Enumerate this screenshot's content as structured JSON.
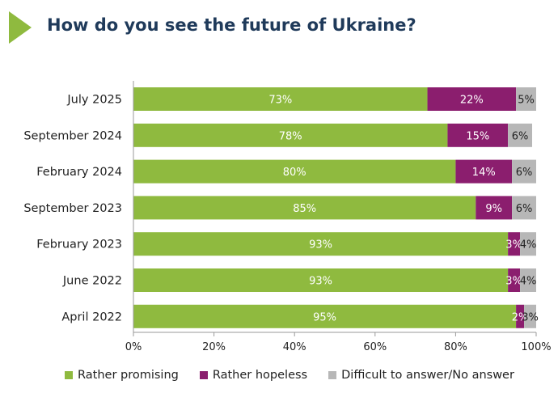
{
  "title": "How do you see the future of Ukraine?",
  "chart_data": {
    "type": "bar",
    "orientation": "horizontal",
    "stacked": true,
    "title": "How do you see the future of Ukraine?",
    "categories": [
      "July 2025",
      "September 2024",
      "February 2024",
      "September 2023",
      "February 2023",
      "June 2022",
      "April 2022"
    ],
    "series": [
      {
        "name": "Rather promising",
        "color": "#8fba3f",
        "values": [
          73,
          78,
          80,
          85,
          93,
          93,
          95
        ]
      },
      {
        "name": "Rather hopeless",
        "color": "#8b1e6e",
        "values": [
          22,
          15,
          14,
          9,
          3,
          3,
          2
        ]
      },
      {
        "name": "Difficult to answer/No answer",
        "color": "#b7b7b7",
        "values": [
          5,
          6,
          6,
          6,
          4,
          4,
          3
        ]
      }
    ],
    "value_suffix": "%",
    "xlim": [
      0,
      100
    ],
    "x_ticks": [
      "0%",
      "20%",
      "40%",
      "60%",
      "80%",
      "100%"
    ],
    "grid": false,
    "legend_position": "bottom"
  }
}
